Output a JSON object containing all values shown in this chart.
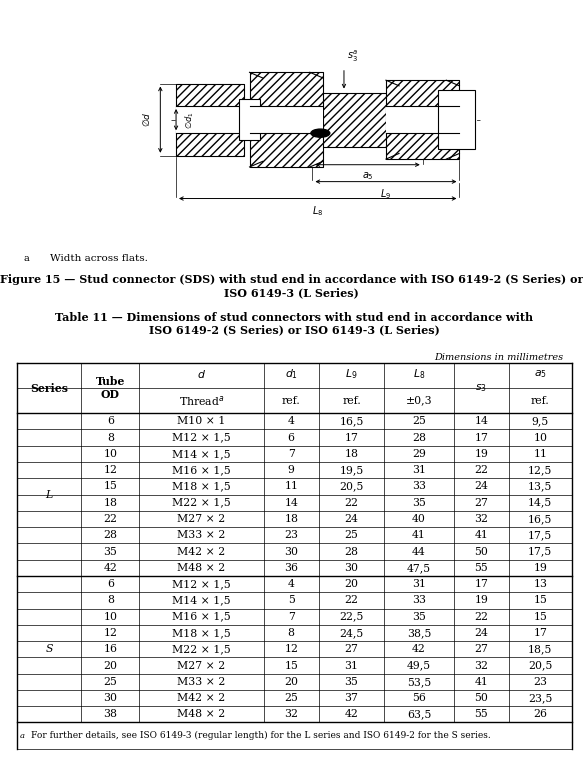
{
  "figure_caption_line1": "Figure 15 — Stud connector (SDS) with stud end in accordance with ISO 6149-2 (S Series) or",
  "figure_caption_line2": "ISO 6149-3 (L Series)",
  "footnote_a_marker": "a",
  "footnote_a_text": "Width across flats.",
  "table_title_line1": "Table 11 — Dimensions of stud connectors with stud end in accordance with",
  "table_title_line2": "ISO 6149-2 (S Series) or ISO 6149-3 (L Series)",
  "dim_note": "Dimensions in millimetres",
  "L_rows": [
    [
      "6",
      "M10 × 1",
      "4",
      "16,5",
      "25",
      "14",
      "9,5"
    ],
    [
      "8",
      "M12 × 1,5",
      "6",
      "17",
      "28",
      "17",
      "10"
    ],
    [
      "10",
      "M14 × 1,5",
      "7",
      "18",
      "29",
      "19",
      "11"
    ],
    [
      "12",
      "M16 × 1,5",
      "9",
      "19,5",
      "31",
      "22",
      "12,5"
    ],
    [
      "15",
      "M18 × 1,5",
      "11",
      "20,5",
      "33",
      "24",
      "13,5"
    ],
    [
      "18",
      "M22 × 1,5",
      "14",
      "22",
      "35",
      "27",
      "14,5"
    ],
    [
      "22",
      "M27 × 2",
      "18",
      "24",
      "40",
      "32",
      "16,5"
    ],
    [
      "28",
      "M33 × 2",
      "23",
      "25",
      "41",
      "41",
      "17,5"
    ],
    [
      "35",
      "M42 × 2",
      "30",
      "28",
      "44",
      "50",
      "17,5"
    ],
    [
      "42",
      "M48 × 2",
      "36",
      "30",
      "47,5",
      "55",
      "19"
    ]
  ],
  "S_rows": [
    [
      "6",
      "M12 × 1,5",
      "4",
      "20",
      "31",
      "17",
      "13"
    ],
    [
      "8",
      "M14 × 1,5",
      "5",
      "22",
      "33",
      "19",
      "15"
    ],
    [
      "10",
      "M16 × 1,5",
      "7",
      "22,5",
      "35",
      "22",
      "15"
    ],
    [
      "12",
      "M18 × 1,5",
      "8",
      "24,5",
      "38,5",
      "24",
      "17"
    ],
    [
      "16",
      "M22 × 1,5",
      "12",
      "27",
      "42",
      "27",
      "18,5"
    ],
    [
      "20",
      "M27 × 2",
      "15",
      "31",
      "49,5",
      "32",
      "20,5"
    ],
    [
      "25",
      "M33 × 2",
      "20",
      "35",
      "53,5",
      "41",
      "23"
    ],
    [
      "30",
      "M42 × 2",
      "25",
      "37",
      "56",
      "50",
      "23,5"
    ],
    [
      "38",
      "M48 × 2",
      "32",
      "42",
      "63,5",
      "55",
      "26"
    ]
  ],
  "footnote_table_marker": "a",
  "footnote_table_text": "For further details, see ISO 6149-3 (regular length) for the L series and ISO 6149-2 for the S series."
}
